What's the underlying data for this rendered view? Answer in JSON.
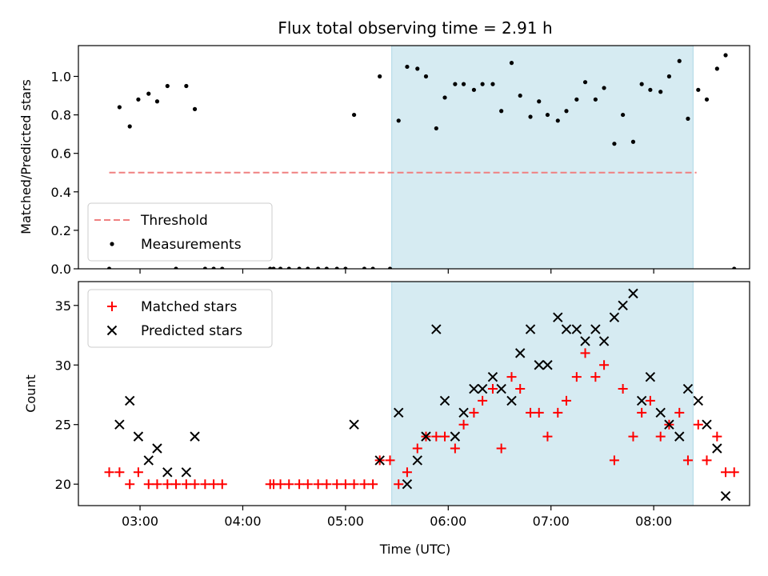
{
  "chart_data": {
    "title": "Flux total observing time = 2.91 h",
    "xlabel": "Time (UTC)",
    "x_unit": "hours UTC",
    "xlim": [
      "02:24",
      "08:56"
    ],
    "xticks": [
      {
        "label": "03:00",
        "value": "03:00"
      },
      {
        "label": "04:00",
        "value": "04:00"
      },
      {
        "label": "05:00",
        "value": "05:00"
      },
      {
        "label": "06:00",
        "value": "06:00"
      },
      {
        "label": "07:00",
        "value": "07:00"
      },
      {
        "label": "08:00",
        "value": "08:00"
      }
    ],
    "highlight": {
      "start": "05:27",
      "end": "08:23",
      "color": "#add8e6",
      "alpha": 0.5
    },
    "panels": [
      {
        "type": "scatter",
        "ylabel": "Matched/Predicted stars",
        "ylim": [
          0,
          1.16
        ],
        "yticks": [
          "0.0",
          "0.2",
          "0.4",
          "0.6",
          "0.8",
          "1.0"
        ],
        "legend_position": "lower-left",
        "threshold": {
          "name": "Threshold",
          "value": 0.5,
          "x_start": "02:42",
          "x_end": "08:25",
          "color": "#f08080"
        },
        "series": [
          {
            "name": "Measurements",
            "color": "#000000",
            "marker": "dot",
            "points": [
              [
                "02:42",
                0
              ],
              [
                "02:48",
                0.84
              ],
              [
                "02:54",
                0.74
              ],
              [
                "02:59",
                0.88
              ],
              [
                "03:05",
                0.91
              ],
              [
                "03:10",
                0.87
              ],
              [
                "03:16",
                0.95
              ],
              [
                "03:21",
                0
              ],
              [
                "03:27",
                0.95
              ],
              [
                "03:32",
                0.83
              ],
              [
                "03:38",
                0
              ],
              [
                "03:43",
                0
              ],
              [
                "03:48",
                0
              ],
              [
                "04:16",
                0
              ],
              [
                "04:18",
                0
              ],
              [
                "04:22",
                0
              ],
              [
                "04:27",
                0
              ],
              [
                "04:33",
                0
              ],
              [
                "04:38",
                0
              ],
              [
                "04:44",
                0
              ],
              [
                "04:49",
                0
              ],
              [
                "04:55",
                0
              ],
              [
                "05:00",
                0
              ],
              [
                "05:05",
                0.8
              ],
              [
                "05:11",
                0
              ],
              [
                "05:16",
                0
              ],
              [
                "05:20",
                1.0
              ],
              [
                "05:26",
                0
              ],
              [
                "05:31",
                0.77
              ],
              [
                "05:36",
                1.05
              ],
              [
                "05:42",
                1.04
              ],
              [
                "05:47",
                1.0
              ],
              [
                "05:53",
                0.73
              ],
              [
                "05:58",
                0.89
              ],
              [
                "06:04",
                0.96
              ],
              [
                "06:09",
                0.96
              ],
              [
                "06:15",
                0.93
              ],
              [
                "06:20",
                0.96
              ],
              [
                "06:26",
                0.96
              ],
              [
                "06:31",
                0.82
              ],
              [
                "06:37",
                1.07
              ],
              [
                "06:42",
                0.9
              ],
              [
                "06:48",
                0.79
              ],
              [
                "06:53",
                0.87
              ],
              [
                "06:58",
                0.8
              ],
              [
                "07:04",
                0.77
              ],
              [
                "07:09",
                0.82
              ],
              [
                "07:15",
                0.88
              ],
              [
                "07:20",
                0.97
              ],
              [
                "07:26",
                0.88
              ],
              [
                "07:31",
                0.94
              ],
              [
                "07:37",
                0.65
              ],
              [
                "07:42",
                0.8
              ],
              [
                "07:48",
                0.66
              ],
              [
                "07:53",
                0.96
              ],
              [
                "07:58",
                0.93
              ],
              [
                "08:04",
                0.92
              ],
              [
                "08:09",
                1.0
              ],
              [
                "08:15",
                1.08
              ],
              [
                "08:20",
                0.78
              ],
              [
                "08:26",
                0.93
              ],
              [
                "08:31",
                0.88
              ],
              [
                "08:37",
                1.04
              ],
              [
                "08:42",
                1.11
              ],
              [
                "08:47",
                0
              ]
            ]
          }
        ]
      },
      {
        "type": "scatter",
        "ylabel": "Count",
        "ylim": [
          18.2,
          37.0
        ],
        "yticks": [
          "20",
          "25",
          "30",
          "35"
        ],
        "legend_position": "upper-left",
        "series": [
          {
            "name": "Matched stars",
            "color": "#ff0000",
            "marker": "plus",
            "points": [
              [
                "02:42",
                21
              ],
              [
                "02:48",
                21
              ],
              [
                "02:54",
                20
              ],
              [
                "02:59",
                21
              ],
              [
                "03:05",
                20
              ],
              [
                "03:10",
                20
              ],
              [
                "03:16",
                20
              ],
              [
                "03:21",
                20
              ],
              [
                "03:27",
                20
              ],
              [
                "03:32",
                20
              ],
              [
                "03:38",
                20
              ],
              [
                "03:43",
                20
              ],
              [
                "03:48",
                20
              ],
              [
                "04:16",
                20
              ],
              [
                "04:18",
                20
              ],
              [
                "04:22",
                20
              ],
              [
                "04:27",
                20
              ],
              [
                "04:33",
                20
              ],
              [
                "04:38",
                20
              ],
              [
                "04:44",
                20
              ],
              [
                "04:49",
                20
              ],
              [
                "04:55",
                20
              ],
              [
                "05:00",
                20
              ],
              [
                "05:05",
                20
              ],
              [
                "05:11",
                20
              ],
              [
                "05:16",
                20
              ],
              [
                "05:20",
                22
              ],
              [
                "05:26",
                22
              ],
              [
                "05:31",
                20
              ],
              [
                "05:36",
                21
              ],
              [
                "05:42",
                23
              ],
              [
                "05:47",
                24
              ],
              [
                "05:53",
                24
              ],
              [
                "05:58",
                24
              ],
              [
                "06:04",
                23
              ],
              [
                "06:09",
                25
              ],
              [
                "06:15",
                26
              ],
              [
                "06:20",
                27
              ],
              [
                "06:26",
                28
              ],
              [
                "06:31",
                23
              ],
              [
                "06:37",
                29
              ],
              [
                "06:42",
                28
              ],
              [
                "06:48",
                26
              ],
              [
                "06:53",
                26
              ],
              [
                "06:58",
                24
              ],
              [
                "07:04",
                26
              ],
              [
                "07:09",
                27
              ],
              [
                "07:15",
                29
              ],
              [
                "07:20",
                31
              ],
              [
                "07:26",
                29
              ],
              [
                "07:31",
                30
              ],
              [
                "07:37",
                22
              ],
              [
                "07:42",
                28
              ],
              [
                "07:48",
                24
              ],
              [
                "07:53",
                26
              ],
              [
                "07:58",
                27
              ],
              [
                "08:04",
                24
              ],
              [
                "08:09",
                25
              ],
              [
                "08:15",
                26
              ],
              [
                "08:20",
                22
              ],
              [
                "08:26",
                25
              ],
              [
                "08:31",
                22
              ],
              [
                "08:37",
                24
              ],
              [
                "08:42",
                21
              ],
              [
                "08:47",
                21
              ]
            ]
          },
          {
            "name": "Predicted stars",
            "color": "#000000",
            "marker": "x",
            "points": [
              [
                "02:48",
                25
              ],
              [
                "02:54",
                27
              ],
              [
                "02:59",
                24
              ],
              [
                "03:05",
                22
              ],
              [
                "03:10",
                23
              ],
              [
                "03:16",
                21
              ],
              [
                "03:27",
                21
              ],
              [
                "03:32",
                24
              ],
              [
                "05:05",
                25
              ],
              [
                "05:20",
                22
              ],
              [
                "05:31",
                26
              ],
              [
                "05:36",
                20
              ],
              [
                "05:42",
                22
              ],
              [
                "05:47",
                24
              ],
              [
                "05:53",
                33
              ],
              [
                "05:58",
                27
              ],
              [
                "06:04",
                24
              ],
              [
                "06:09",
                26
              ],
              [
                "06:15",
                28
              ],
              [
                "06:20",
                28
              ],
              [
                "06:26",
                29
              ],
              [
                "06:31",
                28
              ],
              [
                "06:37",
                27
              ],
              [
                "06:42",
                31
              ],
              [
                "06:48",
                33
              ],
              [
                "06:53",
                30
              ],
              [
                "06:58",
                30
              ],
              [
                "07:04",
                34
              ],
              [
                "07:09",
                33
              ],
              [
                "07:15",
                33
              ],
              [
                "07:20",
                32
              ],
              [
                "07:26",
                33
              ],
              [
                "07:31",
                32
              ],
              [
                "07:37",
                34
              ],
              [
                "07:42",
                35
              ],
              [
                "07:48",
                36
              ],
              [
                "07:53",
                27
              ],
              [
                "07:58",
                29
              ],
              [
                "08:04",
                26
              ],
              [
                "08:09",
                25
              ],
              [
                "08:15",
                24
              ],
              [
                "08:20",
                28
              ],
              [
                "08:26",
                27
              ],
              [
                "08:31",
                25
              ],
              [
                "08:37",
                23
              ],
              [
                "08:42",
                19
              ]
            ]
          }
        ]
      }
    ]
  }
}
